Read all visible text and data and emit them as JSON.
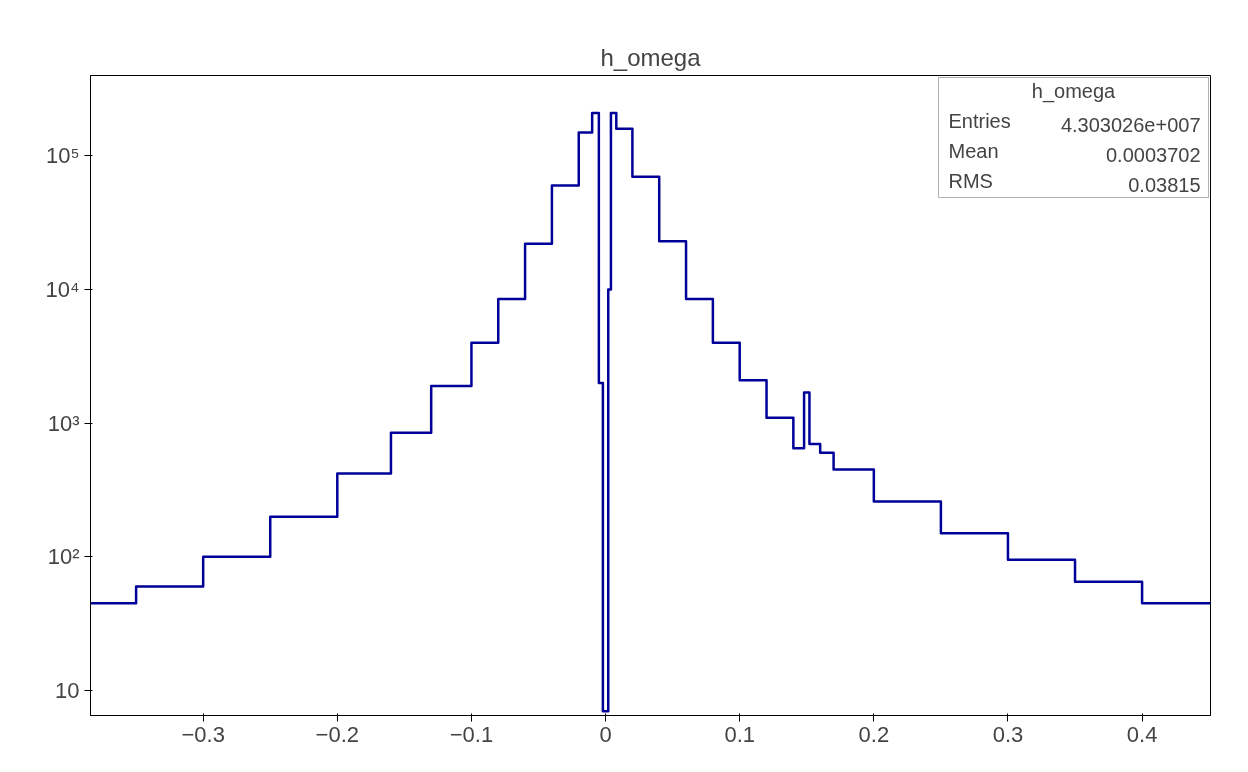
{
  "chart_data": {
    "type": "histogram",
    "title": "h_omega",
    "bins": [
      -0.384,
      -0.35,
      -0.3,
      -0.25,
      -0.2,
      -0.16,
      -0.13,
      -0.1,
      -0.08,
      -0.06,
      -0.04,
      -0.02,
      -0.01,
      -0.005,
      -0.002,
      0.002,
      0.004,
      0.008,
      0.02,
      0.04,
      0.06,
      0.08,
      0.1,
      0.12,
      0.14,
      0.148,
      0.152,
      0.16,
      0.17,
      0.2,
      0.25,
      0.3,
      0.35,
      0.4,
      0.451
    ],
    "values": [
      45,
      60,
      100,
      200,
      420,
      850,
      1900,
      4000,
      8500,
      22000,
      60000,
      150000,
      210000,
      2000,
      7,
      10000,
      210000,
      160000,
      70000,
      23000,
      8500,
      4000,
      2100,
      1100,
      650,
      1700,
      700,
      600,
      450,
      260,
      150,
      95,
      65,
      45
    ],
    "color": "#000099",
    "log": "y",
    "grid": false,
    "xlim": [
      -0.384,
      0.451
    ],
    "xticks": [
      {
        "value": -0.3,
        "label": "−0.3"
      },
      {
        "value": -0.2,
        "label": "−0.2"
      },
      {
        "value": -0.1,
        "label": "−0.1"
      },
      0,
      0.1,
      0.2,
      0.3,
      0.4
    ],
    "ylim": [
      6.5,
      400000
    ],
    "yticks": [
      10,
      {
        "value": 100,
        "label": "10²"
      },
      {
        "value": 1000,
        "label": "10³"
      },
      {
        "value": 10000,
        "label": "10⁴"
      },
      {
        "value": 100000,
        "label": "10⁵"
      }
    ],
    "annotations": [
      "h_omega",
      "Entries",
      "4.303026e+007",
      "Mean",
      "0.0003702",
      "RMS",
      "0.03815"
    ]
  }
}
